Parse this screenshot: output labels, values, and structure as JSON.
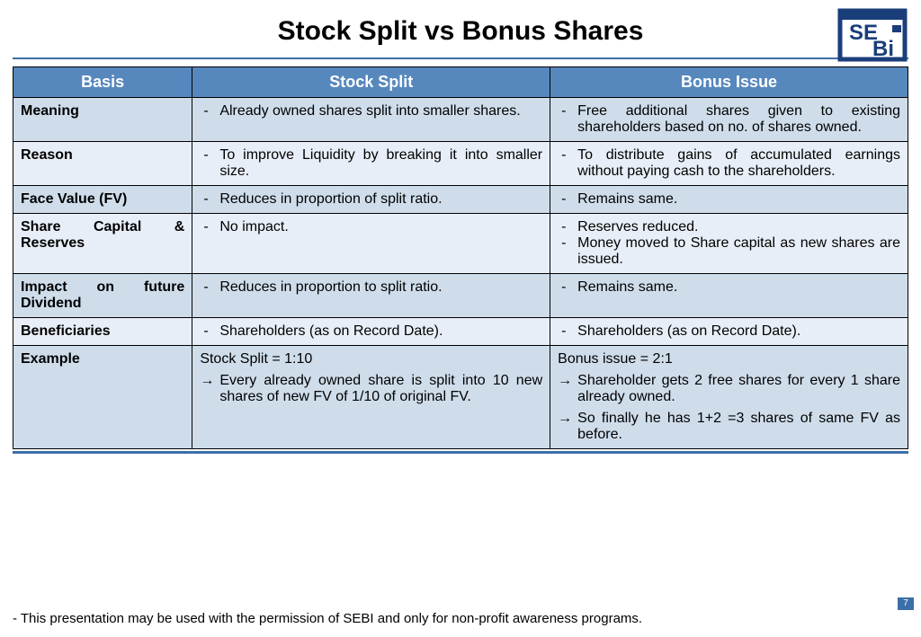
{
  "title": "Stock Split vs Bonus Shares",
  "logo": {
    "text_top": "SE",
    "text_bottom": "Bi",
    "color": "#1a3e7a"
  },
  "columns": [
    "Basis",
    "Stock Split",
    "Bonus Issue"
  ],
  "rows": [
    {
      "basis": "Meaning",
      "split": [
        "Already owned shares split into smaller shares."
      ],
      "bonus": [
        "Free additional shares given to existing shareholders based on no. of shares owned."
      ]
    },
    {
      "basis": "Reason",
      "split": [
        "To improve Liquidity by breaking it into smaller size."
      ],
      "bonus": [
        "To distribute gains of accumulated earnings without paying cash to the shareholders."
      ]
    },
    {
      "basis": "Face Value (FV)",
      "split": [
        "Reduces in proportion of split ratio."
      ],
      "bonus": [
        "Remains same."
      ]
    },
    {
      "basis": "Share Capital & Reserves",
      "split": [
        "No impact."
      ],
      "bonus": [
        "Reserves reduced.",
        "Money moved to Share capital as new shares are issued."
      ]
    },
    {
      "basis": "Impact on future Dividend",
      "split": [
        "Reduces in proportion to split ratio."
      ],
      "bonus": [
        "Remains same."
      ]
    },
    {
      "basis": "Beneficiaries",
      "split": [
        "Shareholders (as on Record Date)."
      ],
      "bonus": [
        "Shareholders (as on Record Date)."
      ]
    }
  ],
  "example": {
    "basis": "Example",
    "split_lead": "Stock Split = 1:10",
    "split_arrows": [
      "Every already owned share is split into 10 new shares of new FV of 1/10 of original FV."
    ],
    "bonus_lead": "Bonus issue = 2:1",
    "bonus_arrows": [
      "Shareholder gets 2 free shares for every 1 share already owned.",
      "So finally he has 1+2 =3 shares of same FV as before."
    ]
  },
  "footer": "- This presentation may be used with the permission of SEBI and only for non-profit awareness programs.",
  "page_number": "7",
  "colors": {
    "header_bg": "#5788bd",
    "row_even_bg": "#cfddeb",
    "row_odd_bg": "#e8eef7",
    "divider": "#3b6fa8"
  }
}
